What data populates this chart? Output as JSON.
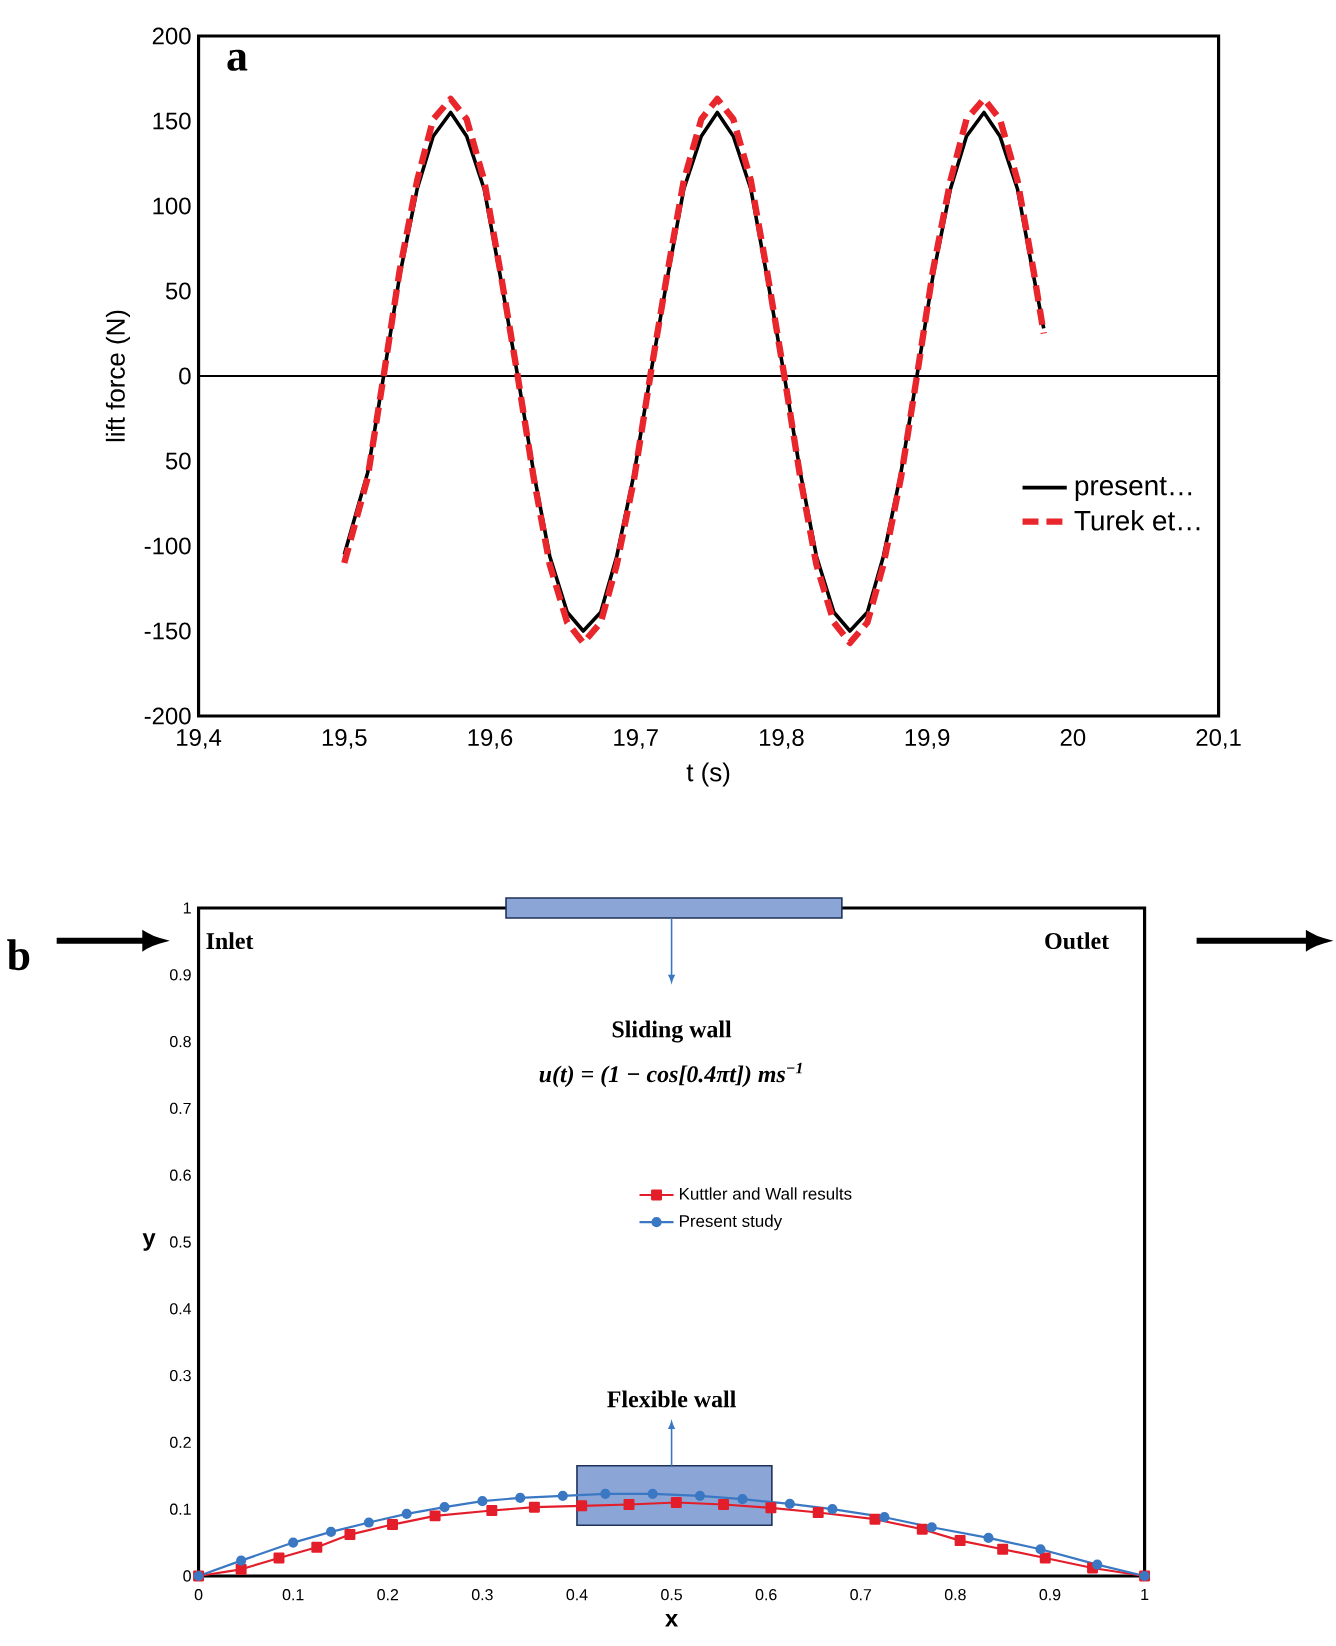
{
  "chart_data": [
    {
      "type": "line",
      "xlabel": "t (s)",
      "ylabel": "lift force (N)",
      "xlim": [
        19.4,
        20.1
      ],
      "xticks": [
        {
          "value": 19.4,
          "label": "19,4"
        },
        {
          "value": 19.5,
          "label": "19,5"
        },
        {
          "value": 19.6,
          "label": "19,6"
        },
        {
          "value": 19.7,
          "label": "19,7"
        },
        {
          "value": 19.8,
          "label": "19,8"
        },
        {
          "value": 19.9,
          "label": "19,9"
        },
        20,
        {
          "value": 20.1,
          "label": "20,1"
        }
      ],
      "ylim": [
        -200,
        200
      ],
      "yticks": [
        -200,
        -150,
        -100,
        {
          "value": -50,
          "label": "50"
        },
        0,
        50,
        100,
        150,
        200
      ],
      "ref_lines": [
        {
          "axis": "y",
          "value": 0
        }
      ],
      "legend": "right",
      "annotations": [
        "a"
      ],
      "series": [
        {
          "name": "present…",
          "color": "#000000",
          "line_style": "solid",
          "x": [
            19.5,
            19.516,
            19.527,
            19.538,
            19.55,
            19.561,
            19.573,
            19.584,
            19.596,
            19.607,
            19.619,
            19.63,
            19.641,
            19.653,
            19.664,
            19.676,
            19.687,
            19.699,
            19.71,
            19.722,
            19.733,
            19.745,
            19.756,
            19.767,
            19.779,
            19.79,
            19.802,
            19.813,
            19.824,
            19.836,
            19.847,
            19.859,
            19.87,
            19.882,
            19.893,
            19.904,
            19.916,
            19.927,
            19.939,
            19.95,
            19.962,
            19.973,
            19.98
          ],
          "values": [
            -105,
            -57,
            0,
            59,
            110,
            141,
            155,
            141,
            110,
            59,
            0,
            -57,
            -106,
            -139,
            -150,
            -139,
            -106,
            -57,
            0,
            59,
            110,
            141,
            155,
            141,
            110,
            59,
            0,
            -57,
            -106,
            -139,
            -150,
            -139,
            -106,
            -57,
            0,
            59,
            110,
            141,
            155,
            141,
            110,
            59,
            28
          ]
        },
        {
          "name": "Turek et…",
          "color": "#e8262b",
          "line_style": "dashed",
          "x": [
            19.5,
            19.516,
            19.527,
            19.538,
            19.55,
            19.561,
            19.573,
            19.584,
            19.596,
            19.607,
            19.619,
            19.63,
            19.641,
            19.653,
            19.664,
            19.676,
            19.687,
            19.699,
            19.71,
            19.722,
            19.733,
            19.745,
            19.756,
            19.767,
            19.779,
            19.79,
            19.802,
            19.813,
            19.824,
            19.836,
            19.847,
            19.859,
            19.87,
            19.882,
            19.893,
            19.904,
            19.916,
            19.927,
            19.939,
            19.95,
            19.962,
            19.973,
            19.98
          ],
          "values": [
            -110,
            -60,
            0,
            62,
            115,
            151,
            163,
            151,
            115,
            62,
            0,
            -60,
            -111,
            -145,
            -157,
            -145,
            -111,
            -60,
            0,
            62,
            115,
            151,
            163,
            151,
            115,
            62,
            0,
            -60,
            -111,
            -145,
            -157,
            -145,
            -111,
            -60,
            0,
            62,
            115,
            151,
            163,
            151,
            115,
            62,
            25
          ]
        }
      ]
    },
    {
      "type": "line",
      "xlabel": "x",
      "ylabel": "y",
      "xlim": [
        0,
        1
      ],
      "xticks": [
        0,
        0.1,
        0.2,
        0.3,
        0.4,
        0.5,
        0.6,
        0.7,
        0.8,
        0.9,
        1
      ],
      "ylim": [
        0,
        1
      ],
      "yticks": [
        0,
        0.1,
        0.2,
        0.3,
        0.4,
        0.5,
        0.6,
        0.7,
        0.8,
        0.9,
        1
      ],
      "legend": "center",
      "annotations": [
        "b",
        "Inlet",
        "Outlet",
        "Sliding wall",
        "u(t) = (1 − cos[0.4πt])  ms$^{−1}$",
        "Flexible wall"
      ],
      "series": [
        {
          "name": "Kuttler and Wall results",
          "color": "#e31e2a",
          "marker": "square",
          "x": [
            0,
            0.045,
            0.085,
            0.125,
            0.16,
            0.205,
            0.25,
            0.31,
            0.355,
            0.405,
            0.455,
            0.505,
            0.555,
            0.605,
            0.655,
            0.715,
            0.765,
            0.805,
            0.85,
            0.895,
            0.945,
            1.0
          ],
          "values": [
            0,
            0.01,
            0.027,
            0.043,
            0.062,
            0.077,
            0.09,
            0.098,
            0.103,
            0.105,
            0.107,
            0.11,
            0.107,
            0.102,
            0.095,
            0.085,
            0.07,
            0.053,
            0.04,
            0.027,
            0.012,
            0
          ]
        },
        {
          "name": "Present study",
          "color": "#3b78c3",
          "marker": "circle",
          "x": [
            0,
            0.045,
            0.1,
            0.14,
            0.18,
            0.22,
            0.26,
            0.3,
            0.34,
            0.385,
            0.43,
            0.48,
            0.53,
            0.575,
            0.625,
            0.67,
            0.725,
            0.775,
            0.835,
            0.89,
            0.95,
            1.0
          ],
          "values": [
            0,
            0.023,
            0.05,
            0.066,
            0.08,
            0.093,
            0.103,
            0.112,
            0.117,
            0.12,
            0.123,
            0.123,
            0.12,
            0.115,
            0.108,
            0.1,
            0.088,
            0.073,
            0.057,
            0.04,
            0.017,
            0
          ]
        }
      ]
    }
  ]
}
